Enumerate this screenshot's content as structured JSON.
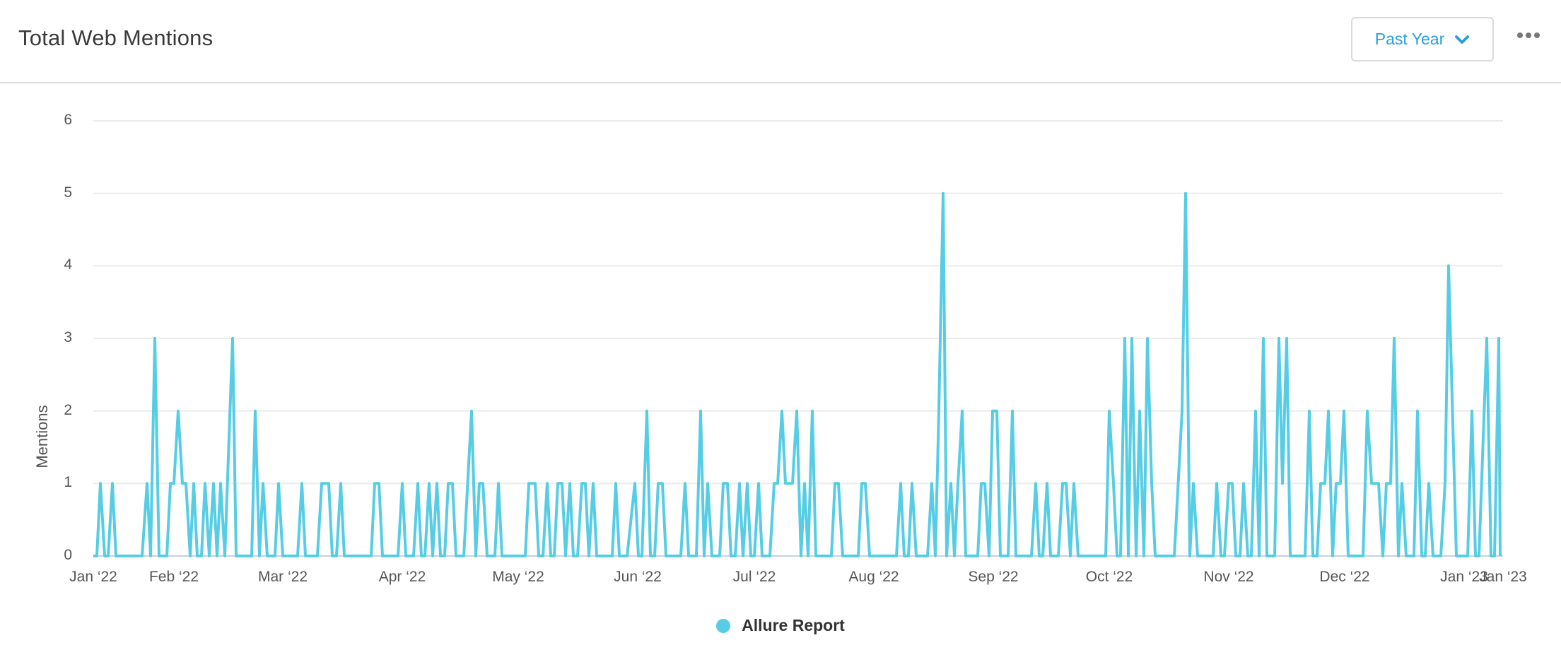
{
  "header": {
    "title": "Total Web Mentions",
    "range_selector": {
      "selected": "Past Year"
    },
    "more_menu": "more-options"
  },
  "colors": {
    "series": "#56cde4",
    "accent": "#2a9fe0",
    "grid": "#ebebeb",
    "axis": "#c8d0e0"
  },
  "chart_data": {
    "type": "line",
    "title": "Total Web Mentions",
    "xlabel": "",
    "ylabel": "Mentions",
    "ylim": [
      0,
      6
    ],
    "yticks": [
      0,
      1,
      2,
      3,
      4,
      5,
      6
    ],
    "xticks": [
      "Jan ‘22",
      "Feb ‘22",
      "Mar ‘22",
      "Apr ‘22",
      "May ‘22",
      "Jun ‘22",
      "Jul ‘22",
      "Aug ‘22",
      "Sep ‘22",
      "Oct ‘22",
      "Nov ‘22",
      "Dec ‘22",
      "Jan ‘23",
      "Jan ‘23"
    ],
    "grid": true,
    "legend_position": "bottom",
    "series": [
      {
        "name": "Allure Report",
        "points_note": "approximate vertices read from plot: [x-pixel, value]",
        "vertices": [
          [
            132,
            0
          ],
          [
            137,
            0
          ],
          [
            142,
            1
          ],
          [
            148,
            0
          ],
          [
            153,
            0
          ],
          [
            159,
            1
          ],
          [
            164,
            0
          ],
          [
            201,
            0
          ],
          [
            208,
            1
          ],
          [
            213,
            0
          ],
          [
            219,
            3
          ],
          [
            225,
            0
          ],
          [
            236,
            0
          ],
          [
            241,
            1
          ],
          [
            246,
            1
          ],
          [
            252,
            2
          ],
          [
            258,
            1
          ],
          [
            263,
            1
          ],
          [
            269,
            0
          ],
          [
            274,
            1
          ],
          [
            279,
            0
          ],
          [
            285,
            0
          ],
          [
            290,
            1
          ],
          [
            296,
            0
          ],
          [
            302,
            1
          ],
          [
            307,
            0
          ],
          [
            312,
            1
          ],
          [
            318,
            0
          ],
          [
            329,
            3
          ],
          [
            334,
            0
          ],
          [
            356,
            0
          ],
          [
            361,
            2
          ],
          [
            367,
            0
          ],
          [
            372,
            1
          ],
          [
            378,
            0
          ],
          [
            389,
            0
          ],
          [
            394,
            1
          ],
          [
            400,
            0
          ],
          [
            421,
            0
          ],
          [
            427,
            1
          ],
          [
            432,
            0
          ],
          [
            449,
            0
          ],
          [
            455,
            1
          ],
          [
            465,
            1
          ],
          [
            470,
            0
          ],
          [
            476,
            0
          ],
          [
            482,
            1
          ],
          [
            487,
            0
          ],
          [
            525,
            0
          ],
          [
            530,
            1
          ],
          [
            536,
            1
          ],
          [
            541,
            0
          ],
          [
            563,
            0
          ],
          [
            569,
            1
          ],
          [
            574,
            0
          ],
          [
            585,
            0
          ],
          [
            591,
            1
          ],
          [
            596,
            0
          ],
          [
            601,
            0
          ],
          [
            607,
            1
          ],
          [
            612,
            0
          ],
          [
            618,
            1
          ],
          [
            623,
            0
          ],
          [
            629,
            0
          ],
          [
            634,
            1
          ],
          [
            640,
            1
          ],
          [
            645,
            0
          ],
          [
            656,
            0
          ],
          [
            667,
            2
          ],
          [
            673,
            0
          ],
          [
            678,
            1
          ],
          [
            683,
            1
          ],
          [
            689,
            0
          ],
          [
            700,
            0
          ],
          [
            705,
            1
          ],
          [
            710,
            0
          ],
          [
            743,
            0
          ],
          [
            748,
            1
          ],
          [
            757,
            1
          ],
          [
            762,
            0
          ],
          [
            768,
            0
          ],
          [
            774,
            1
          ],
          [
            779,
            0
          ],
          [
            784,
            0
          ],
          [
            789,
            1
          ],
          [
            795,
            1
          ],
          [
            800,
            0
          ],
          [
            806,
            1
          ],
          [
            811,
            0
          ],
          [
            817,
            0
          ],
          [
            823,
            1
          ],
          [
            828,
            1
          ],
          [
            833,
            0
          ],
          [
            839,
            1
          ],
          [
            844,
            0
          ],
          [
            866,
            0
          ],
          [
            871,
            1
          ],
          [
            876,
            0
          ],
          [
            887,
            0
          ],
          [
            898,
            1
          ],
          [
            903,
            0
          ],
          [
            908,
            0
          ],
          [
            915,
            2
          ],
          [
            920,
            0
          ],
          [
            926,
            0
          ],
          [
            931,
            1
          ],
          [
            937,
            1
          ],
          [
            942,
            0
          ],
          [
            963,
            0
          ],
          [
            969,
            1
          ],
          [
            974,
            0
          ],
          [
            985,
            0
          ],
          [
            991,
            2
          ],
          [
            996,
            0
          ],
          [
            1001,
            1
          ],
          [
            1007,
            0
          ],
          [
            1018,
            0
          ],
          [
            1023,
            1
          ],
          [
            1029,
            1
          ],
          [
            1034,
            0
          ],
          [
            1040,
            0
          ],
          [
            1046,
            1
          ],
          [
            1051,
            0
          ],
          [
            1057,
            1
          ],
          [
            1062,
            0
          ],
          [
            1067,
            0
          ],
          [
            1073,
            1
          ],
          [
            1078,
            0
          ],
          [
            1089,
            0
          ],
          [
            1095,
            1
          ],
          [
            1100,
            1
          ],
          [
            1106,
            2
          ],
          [
            1111,
            1
          ],
          [
            1121,
            1
          ],
          [
            1127,
            2
          ],
          [
            1133,
            0
          ],
          [
            1138,
            1
          ],
          [
            1143,
            0
          ],
          [
            1149,
            2
          ],
          [
            1154,
            0
          ],
          [
            1176,
            0
          ],
          [
            1181,
            1
          ],
          [
            1186,
            1
          ],
          [
            1192,
            0
          ],
          [
            1214,
            0
          ],
          [
            1219,
            1
          ],
          [
            1224,
            1
          ],
          [
            1230,
            0
          ],
          [
            1268,
            0
          ],
          [
            1274,
            1
          ],
          [
            1279,
            0
          ],
          [
            1285,
            0
          ],
          [
            1290,
            1
          ],
          [
            1296,
            0
          ],
          [
            1312,
            0
          ],
          [
            1318,
            1
          ],
          [
            1323,
            0
          ],
          [
            1328,
            2
          ],
          [
            1334,
            5
          ],
          [
            1339,
            0
          ],
          [
            1345,
            1
          ],
          [
            1350,
            0
          ],
          [
            1355,
            1
          ],
          [
            1361,
            2
          ],
          [
            1366,
            0
          ],
          [
            1383,
            0
          ],
          [
            1388,
            1
          ],
          [
            1393,
            1
          ],
          [
            1399,
            0
          ],
          [
            1404,
            2
          ],
          [
            1410,
            2
          ],
          [
            1415,
            0
          ],
          [
            1426,
            0
          ],
          [
            1432,
            2
          ],
          [
            1437,
            0
          ],
          [
            1459,
            0
          ],
          [
            1465,
            1
          ],
          [
            1470,
            0
          ],
          [
            1475,
            0
          ],
          [
            1481,
            1
          ],
          [
            1486,
            0
          ],
          [
            1497,
            0
          ],
          [
            1503,
            1
          ],
          [
            1508,
            1
          ],
          [
            1514,
            0
          ],
          [
            1519,
            1
          ],
          [
            1525,
            0
          ],
          [
            1564,
            0
          ],
          [
            1569,
            2
          ],
          [
            1575,
            1
          ],
          [
            1580,
            0
          ],
          [
            1585,
            0
          ],
          [
            1591,
            3
          ],
          [
            1596,
            0
          ],
          [
            1601,
            3
          ],
          [
            1607,
            0
          ],
          [
            1612,
            2
          ],
          [
            1618,
            0
          ],
          [
            1623,
            3
          ],
          [
            1629,
            1
          ],
          [
            1634,
            0
          ],
          [
            1661,
            0
          ],
          [
            1672,
            2
          ],
          [
            1677,
            5
          ],
          [
            1683,
            0
          ],
          [
            1688,
            1
          ],
          [
            1694,
            0
          ],
          [
            1716,
            0
          ],
          [
            1721,
            1
          ],
          [
            1727,
            0
          ],
          [
            1732,
            0
          ],
          [
            1738,
            1
          ],
          [
            1743,
            1
          ],
          [
            1748,
            0
          ],
          [
            1754,
            0
          ],
          [
            1759,
            1
          ],
          [
            1765,
            0
          ],
          [
            1770,
            0
          ],
          [
            1776,
            2
          ],
          [
            1781,
            0
          ],
          [
            1787,
            3
          ],
          [
            1792,
            0
          ],
          [
            1803,
            0
          ],
          [
            1809,
            3
          ],
          [
            1814,
            1
          ],
          [
            1820,
            3
          ],
          [
            1825,
            0
          ],
          [
            1846,
            0
          ],
          [
            1852,
            2
          ],
          [
            1857,
            0
          ],
          [
            1863,
            0
          ],
          [
            1868,
            1
          ],
          [
            1874,
            1
          ],
          [
            1879,
            2
          ],
          [
            1885,
            0
          ],
          [
            1890,
            1
          ],
          [
            1896,
            1
          ],
          [
            1901,
            2
          ],
          [
            1907,
            0
          ],
          [
            1928,
            0
          ],
          [
            1934,
            2
          ],
          [
            1940,
            1
          ],
          [
            1950,
            1
          ],
          [
            1956,
            0
          ],
          [
            1961,
            1
          ],
          [
            1967,
            1
          ],
          [
            1972,
            3
          ],
          [
            1978,
            0
          ],
          [
            1983,
            1
          ],
          [
            1989,
            0
          ],
          [
            2000,
            0
          ],
          [
            2005,
            2
          ],
          [
            2011,
            0
          ],
          [
            2016,
            0
          ],
          [
            2021,
            1
          ],
          [
            2027,
            0
          ],
          [
            2038,
            0
          ],
          [
            2044,
            1
          ],
          [
            2049,
            4
          ],
          [
            2060,
            0
          ],
          [
            2076,
            0
          ],
          [
            2082,
            2
          ],
          [
            2087,
            0
          ],
          [
            2092,
            0
          ],
          [
            2103,
            3
          ],
          [
            2109,
            0
          ],
          [
            2114,
            0
          ],
          [
            2120,
            3
          ],
          [
            2122,
            0
          ]
        ]
      }
    ]
  },
  "legend": {
    "items": [
      {
        "label": "Allure Report",
        "color": "#56cde4"
      }
    ]
  }
}
